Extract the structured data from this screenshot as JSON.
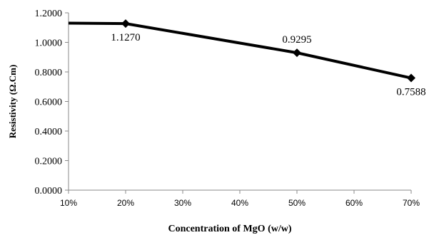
{
  "chart_data": {
    "type": "line",
    "x": [
      10,
      20,
      50,
      70
    ],
    "x_tick_labels": [
      "10%",
      "20%",
      "30%",
      "40%",
      "50%",
      "60%",
      "70%"
    ],
    "x_ticks": [
      10,
      20,
      30,
      40,
      50,
      60,
      70
    ],
    "xlim": [
      10,
      70
    ],
    "series": [
      {
        "values": [
          1.13,
          1.127,
          0.9295,
          0.7588
        ],
        "markers": [
          false,
          true,
          true,
          true
        ],
        "color": "#000000"
      }
    ],
    "data_labels": [
      {
        "x": 20,
        "y": 1.127,
        "text": "1.1270",
        "position": "below"
      },
      {
        "x": 50,
        "y": 0.9295,
        "text": "0.9295",
        "position": "above"
      },
      {
        "x": 70,
        "y": 0.7588,
        "text": "0.7588",
        "position": "below"
      }
    ],
    "y_tick_labels": [
      "0.0000",
      "0.2000",
      "0.4000",
      "0.6000",
      "0.8000",
      "1.0000",
      "1.2000"
    ],
    "y_ticks": [
      0,
      0.2,
      0.4,
      0.6,
      0.8,
      1.0,
      1.2
    ],
    "ylim": [
      0,
      1.2
    ],
    "xlabel": "Concentration of  MgO (w/w)",
    "ylabel": "Resistivity (Ω.Cm)",
    "grid": false,
    "legend": "none"
  }
}
